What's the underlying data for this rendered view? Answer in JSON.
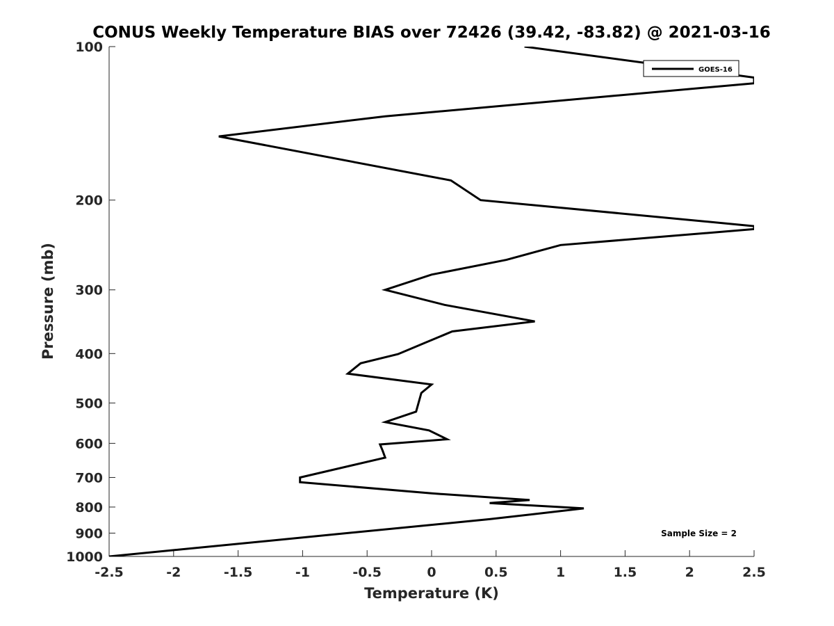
{
  "chart_data": {
    "type": "line",
    "title": "CONUS Weekly Temperature BIAS over 72426 (39.42, -83.82) @ 2021-03-16",
    "xlabel": "Temperature (K)",
    "ylabel": "Pressure (mb)",
    "xlim": [
      -2.5,
      2.5
    ],
    "ylim": [
      100,
      1000
    ],
    "y_scale": "log",
    "y_reversed": true,
    "grid": false,
    "x_ticks": [
      "-2.5",
      "-2",
      "-1.5",
      "-1",
      "-0.5",
      "0",
      "0.5",
      "1",
      "1.5",
      "2",
      "2.5"
    ],
    "x_tick_values": [
      -2.5,
      -2,
      -1.5,
      -1,
      -0.5,
      0,
      0.5,
      1,
      1.5,
      2,
      2.5
    ],
    "y_ticks": [
      "100",
      "200",
      "300",
      "400",
      "500",
      "600",
      "700",
      "800",
      "900",
      "1000"
    ],
    "y_tick_values": [
      100,
      200,
      300,
      400,
      500,
      600,
      700,
      800,
      900,
      1000
    ],
    "legend": {
      "placement": "top-right",
      "entries": [
        "GOES-16"
      ]
    },
    "annotation": "Sample Size = 2",
    "series": [
      {
        "name": "GOES-16",
        "color": "#000000",
        "x": [
          0.72,
          2.5,
          2.5,
          -0.36,
          -1.65,
          0.15,
          0.38,
          2.5,
          2.5,
          1.0,
          0.58,
          0.0,
          -0.36,
          0.1,
          0.8,
          0.16,
          -0.05,
          -0.26,
          -0.55,
          -0.65,
          0.0,
          -0.08,
          -0.12,
          -0.36,
          -0.02,
          0.12,
          -0.4,
          -0.38,
          -0.36,
          -1.02,
          -1.02,
          0.0,
          0.76,
          0.45,
          1.18,
          0.45,
          -2.5
        ],
        "y": [
          100,
          115,
          118,
          137,
          150,
          183,
          200,
          225,
          228,
          245,
          262,
          280,
          300,
          321,
          346,
          362,
          381,
          401,
          418,
          438,
          460,
          478,
          520,
          545,
          566,
          589,
          603,
          620,
          640,
          700,
          715,
          752,
          775,
          786,
          805,
          845,
          1000
        ]
      }
    ]
  }
}
